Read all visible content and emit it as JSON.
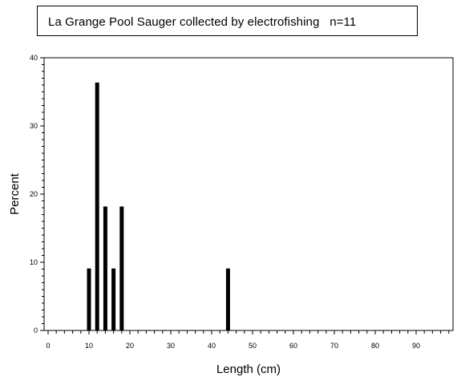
{
  "chart_data": {
    "type": "bar",
    "title": "La Grange Pool Sauger collected by electrofishing   n=11",
    "xlabel": "Length (cm)",
    "ylabel": "Percent",
    "xlim": [
      0,
      98
    ],
    "ylim": [
      0,
      40
    ],
    "x_ticks": [
      0,
      10,
      20,
      30,
      40,
      50,
      60,
      70,
      80,
      90
    ],
    "y_ticks": [
      0,
      10,
      20,
      30,
      40
    ],
    "x": [
      10,
      12,
      14,
      16,
      18,
      44
    ],
    "values": [
      9.09,
      36.36,
      18.18,
      9.09,
      18.18,
      9.09
    ],
    "bar_color": "#000000",
    "grid": false,
    "legend": "none"
  }
}
